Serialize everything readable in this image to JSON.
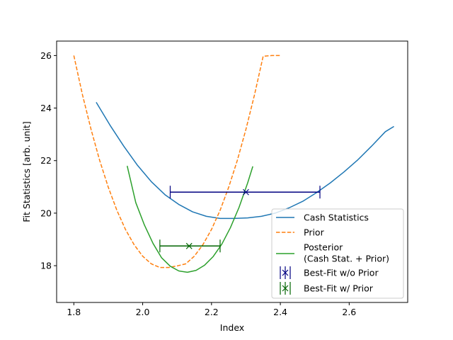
{
  "chart_data": {
    "type": "line",
    "title": "",
    "xlabel": "Index",
    "ylabel": "Fit Statistics [arb. unit]",
    "xlim": [
      1.75,
      2.77
    ],
    "ylim": [
      16.6,
      26.55
    ],
    "x_ticks": [
      1.8,
      2.0,
      2.2,
      2.4,
      2.6
    ],
    "x_tick_labels": [
      "1.8",
      "2.0",
      "2.2",
      "2.4",
      "2.6"
    ],
    "y_ticks": [
      18,
      20,
      22,
      24,
      26
    ],
    "y_tick_labels": [
      "18",
      "20",
      "22",
      "24",
      "26"
    ],
    "grid": false,
    "legend_position": "lower-right",
    "series": [
      {
        "name": "Cash Statistics",
        "style": "solid",
        "color": "#1f77b4",
        "x": [
          1.865,
          1.905,
          1.945,
          1.985,
          2.025,
          2.065,
          2.105,
          2.145,
          2.185,
          2.225,
          2.265,
          2.305,
          2.345,
          2.385,
          2.425,
          2.465,
          2.505,
          2.545,
          2.585,
          2.625,
          2.665,
          2.705,
          2.73
        ],
        "y": [
          24.22,
          23.35,
          22.55,
          21.82,
          21.2,
          20.7,
          20.33,
          20.05,
          19.88,
          19.8,
          19.8,
          19.82,
          19.88,
          20.0,
          20.2,
          20.45,
          20.78,
          21.15,
          21.57,
          22.03,
          22.55,
          23.1,
          23.3
        ]
      },
      {
        "name": "Prior",
        "style": "dashed",
        "color": "#ff7f0e",
        "x": [
          1.8,
          1.825,
          1.85,
          1.875,
          1.9,
          1.925,
          1.95,
          1.975,
          2.0,
          2.025,
          2.05,
          2.075,
          2.1,
          2.125,
          2.15,
          2.175,
          2.2,
          2.225,
          2.25,
          2.275,
          2.3,
          2.325,
          2.35,
          2.375,
          2.4
        ],
        "y": [
          26.0,
          24.51,
          23.19,
          22.01,
          20.99,
          20.11,
          19.38,
          18.8,
          18.36,
          18.07,
          17.93,
          17.93,
          17.99,
          18.07,
          18.36,
          18.8,
          19.38,
          20.11,
          20.99,
          22.01,
          23.19,
          24.51,
          25.97,
          26.0,
          26.0
        ]
      },
      {
        "name": "Posterior\n(Cash Stat. + Prior)",
        "style": "solid",
        "color": "#2ca02c",
        "x": [
          1.955,
          1.98,
          2.005,
          2.03,
          2.055,
          2.08,
          2.105,
          2.13,
          2.155,
          2.18,
          2.205,
          2.23,
          2.255,
          2.28,
          2.305,
          2.32
        ],
        "y": [
          21.8,
          20.4,
          19.55,
          18.85,
          18.3,
          17.98,
          17.8,
          17.75,
          17.82,
          18.02,
          18.35,
          18.82,
          19.45,
          20.22,
          21.15,
          21.78
        ]
      }
    ],
    "points": [
      {
        "name": "Best-Fit w/o Prior",
        "color": "#000080",
        "x": 2.3,
        "y": 20.8,
        "xerr_low": 2.08,
        "xerr_high": 2.515
      },
      {
        "name": "Best-Fit w/ Prior",
        "color": "#006400",
        "x": 2.135,
        "y": 18.75,
        "xerr_low": 2.05,
        "xerr_high": 2.225
      }
    ],
    "legend": [
      "Cash Statistics",
      "Prior",
      "Posterior",
      "(Cash Stat. + Prior)",
      "Best-Fit w/o Prior",
      "Best-Fit w/ Prior"
    ]
  }
}
